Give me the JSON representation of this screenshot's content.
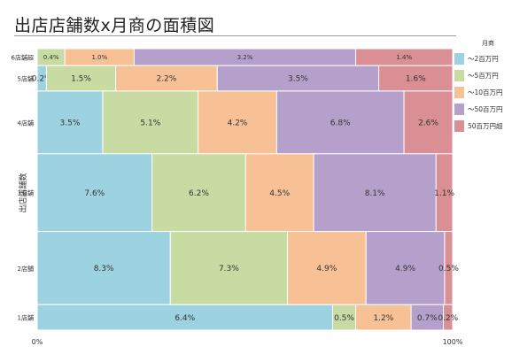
{
  "title": "出店店舗数x月商の面積図",
  "chart_data": {
    "type": "mosaic",
    "title": "出店店舗数x月商の面積図",
    "ylabel": "出店店舗数",
    "xlim_labels": [
      "0%",
      "100%"
    ],
    "legend_title": "月商",
    "legend_position": "right",
    "categories": [
      "〜2百万円",
      "〜5百万円",
      "〜10百万円",
      "〜50百万円",
      "50百万円超"
    ],
    "colors": [
      "#9dd2e0",
      "#c7dba3",
      "#f8c095",
      "#b5a0cb",
      "#d98f93"
    ],
    "rows": [
      {
        "label": "6店舗超",
        "values": [
          0,
          0.4,
          1.0,
          3.2,
          1.4
        ],
        "labels": [
          "",
          "0.4%",
          "1.0%",
          "3.2%",
          "1.4%"
        ]
      },
      {
        "label": "5店舗",
        "values": [
          0.2,
          1.5,
          2.2,
          3.5,
          1.6
        ],
        "labels": [
          "0.2%",
          "1.5%",
          "2.2%",
          "3.5%",
          "1.6%"
        ]
      },
      {
        "label": "4店舗",
        "values": [
          3.5,
          5.1,
          4.2,
          6.8,
          2.6
        ],
        "labels": [
          "3.5%",
          "5.1%",
          "4.2%",
          "6.8%",
          "2.6%"
        ]
      },
      {
        "label": "3店舗",
        "values": [
          7.6,
          6.2,
          4.5,
          8.1,
          1.1
        ],
        "labels": [
          "7.6%",
          "6.2%",
          "4.5%",
          "8.1%",
          "1.1%"
        ]
      },
      {
        "label": "2店舗",
        "values": [
          8.3,
          7.3,
          4.9,
          4.9,
          0.5
        ],
        "labels": [
          "8.3%",
          "7.3%",
          "4.9%",
          "4.9%",
          "0.5%"
        ]
      },
      {
        "label": "1店舗",
        "values": [
          6.4,
          0.5,
          1.2,
          0.7,
          0.2
        ],
        "labels": [
          "6.4%",
          "0.5%",
          "1.2%",
          "0.7%",
          "0.2%"
        ]
      }
    ]
  }
}
